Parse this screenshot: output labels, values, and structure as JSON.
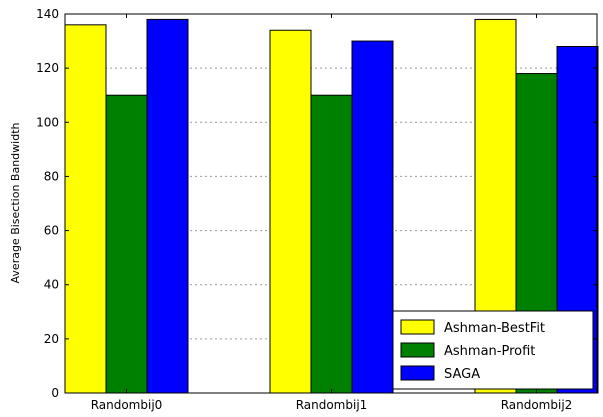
{
  "chart_data": {
    "type": "bar",
    "categories": [
      "Randombij0",
      "Randombij1",
      "Randombij2"
    ],
    "series": [
      {
        "name": "Ashman-BestFit",
        "values": [
          136,
          134,
          138
        ],
        "color": "#ffff00"
      },
      {
        "name": "Ashman-Profit",
        "values": [
          110,
          110,
          118
        ],
        "color": "#008000"
      },
      {
        "name": "SAGA",
        "values": [
          138,
          130,
          128
        ],
        "color": "#0000ff"
      }
    ],
    "title": "",
    "xlabel": "",
    "ylabel": "Average Bisection Bandwidth",
    "ylim": [
      0,
      140
    ],
    "yticks": [
      0,
      20,
      40,
      60,
      80,
      100,
      120,
      140
    ],
    "grid": "horizontal dotted",
    "legend_position": "lower-right"
  }
}
